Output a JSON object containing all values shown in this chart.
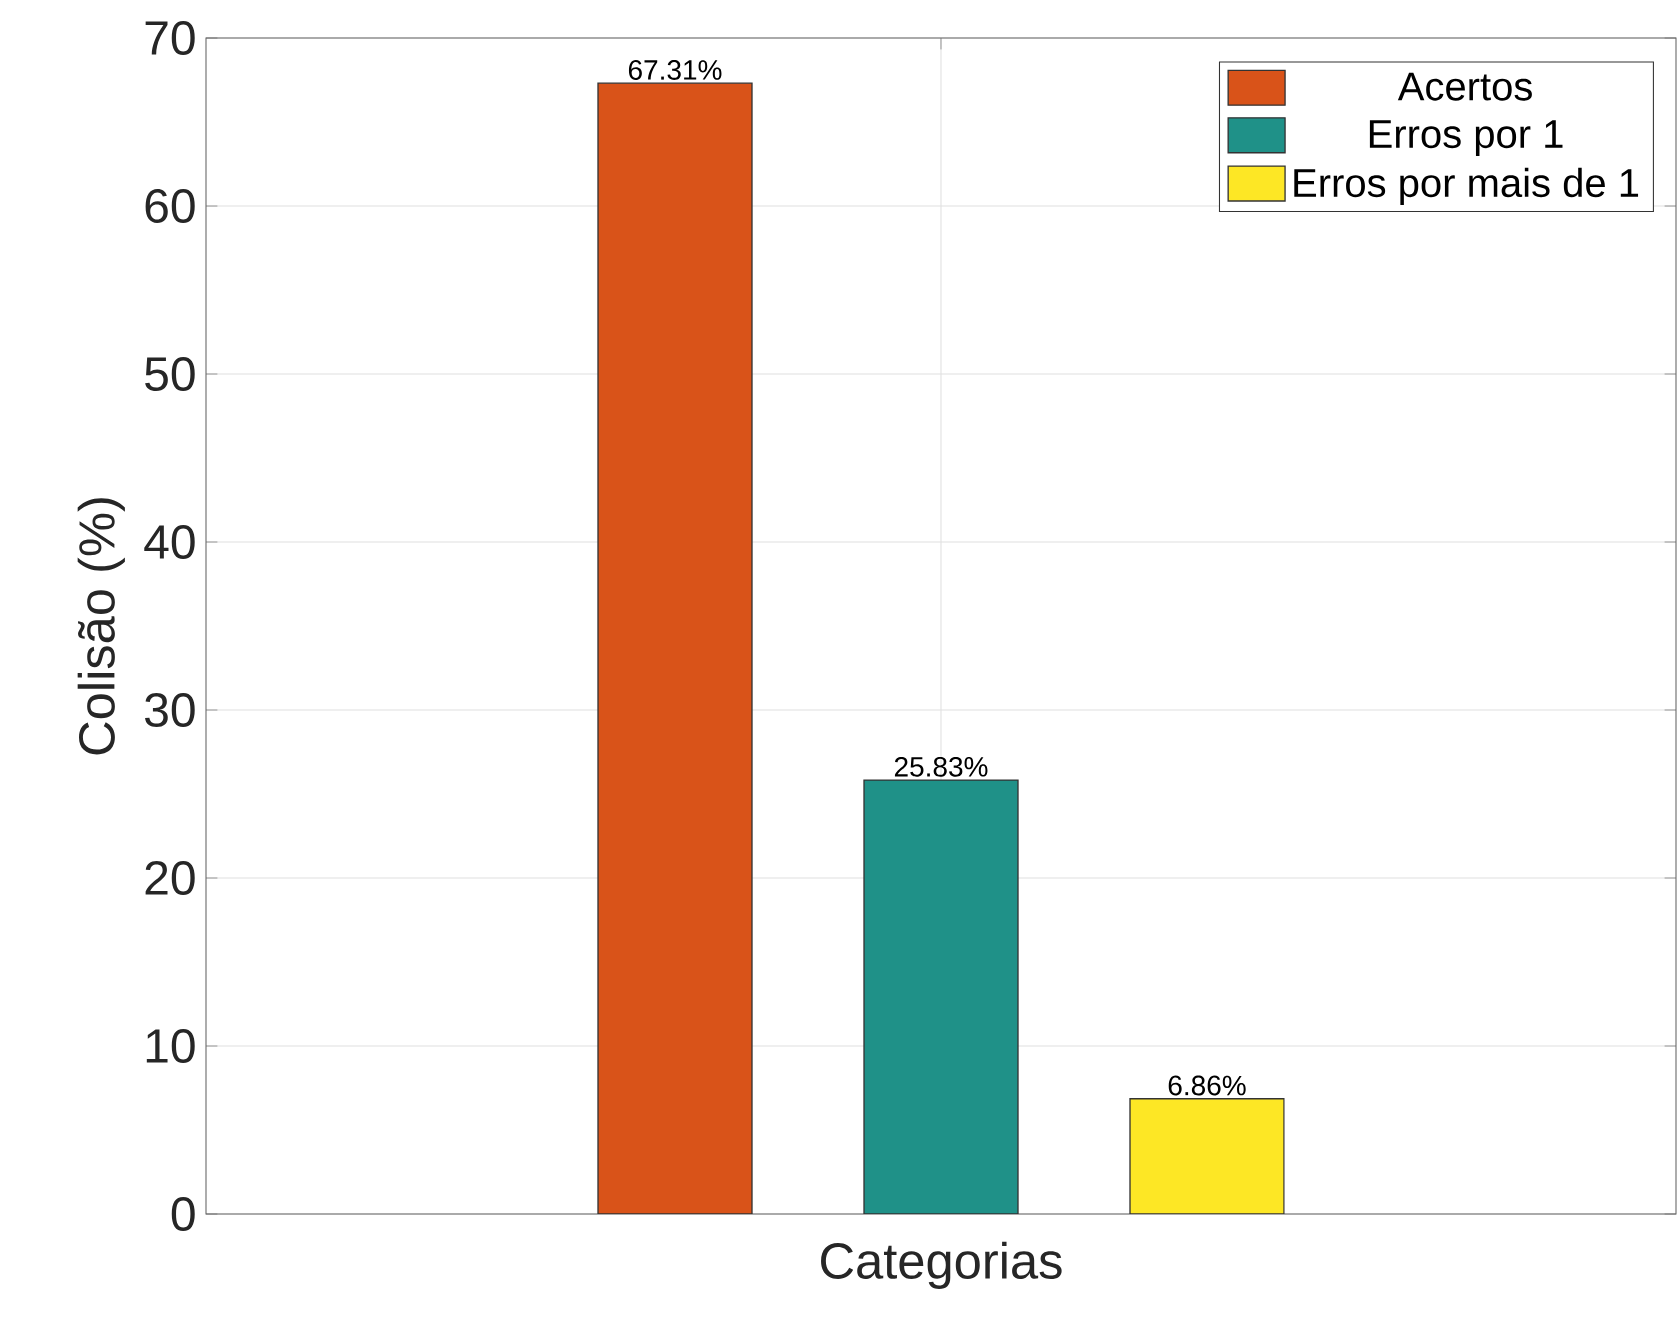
{
  "chart_data": {
    "type": "bar",
    "xlabel": "Categorias",
    "ylabel": "Colisão (%)",
    "categories": [
      null
    ],
    "series": [
      {
        "name": "Acertos",
        "color": "#d95319",
        "values": [
          67.31
        ],
        "value_labels": [
          "67.31%"
        ]
      },
      {
        "name": "Erros por 1",
        "color": "#1f9188",
        "values": [
          25.83
        ],
        "value_labels": [
          "25.83%"
        ]
      },
      {
        "name": "Erros por mais de 1",
        "color": "#fde725",
        "values": [
          6.86
        ],
        "value_labels": [
          "6.86%"
        ]
      }
    ],
    "ylim": [
      0,
      70
    ],
    "yticks": [
      0,
      10,
      20,
      30,
      40,
      50,
      60,
      70
    ],
    "grid": true,
    "legend": "top right"
  }
}
